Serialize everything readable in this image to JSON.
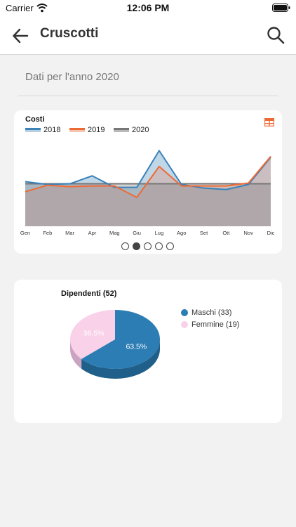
{
  "status_bar": {
    "carrier": "Carrier",
    "time": "12:06 PM"
  },
  "nav": {
    "title": "Cruscotti",
    "back_icon": "arrow-left-icon",
    "search_icon": "search-icon"
  },
  "header": {
    "year_label": "Dati per l'anno 2020"
  },
  "colors": {
    "series_2018": "#3a82b8",
    "series_2019": "#ee6a35",
    "series_2020": "#777777",
    "maschi": "#2b7db3",
    "femmine": "#f9d1e9",
    "accent_table_icon": "#ee6a35"
  },
  "pager": {
    "count": 5,
    "active_index": 1
  },
  "chart_data": [
    {
      "type": "area",
      "title": "Costi",
      "categories": [
        "Gen",
        "Feb",
        "Mar",
        "Apr",
        "Mag",
        "Giu",
        "Lug",
        "Ago",
        "Set",
        "Ott",
        "Nov",
        "Dic"
      ],
      "series": [
        {
          "name": "2018",
          "values": [
            62,
            58,
            59,
            70,
            54,
            54,
            105,
            58,
            53,
            51,
            58,
            96
          ]
        },
        {
          "name": "2019",
          "values": [
            48,
            57,
            55,
            56,
            56,
            40,
            83,
            56,
            56,
            56,
            60,
            97
          ]
        },
        {
          "name": "2020",
          "values": [
            59,
            59,
            59,
            59,
            59,
            59,
            59,
            59,
            59,
            59,
            59,
            59
          ]
        }
      ],
      "ylim": [
        0,
        120
      ],
      "grid": false,
      "legend": "top-left"
    },
    {
      "type": "pie",
      "title": "Dipendenti (52)",
      "series": [
        {
          "name": "Maschi (33)",
          "value": 33,
          "percent_label": "63.5%"
        },
        {
          "name": "Femmine (19)",
          "value": 19,
          "percent_label": "36.5%"
        }
      ],
      "legend": "right"
    }
  ]
}
